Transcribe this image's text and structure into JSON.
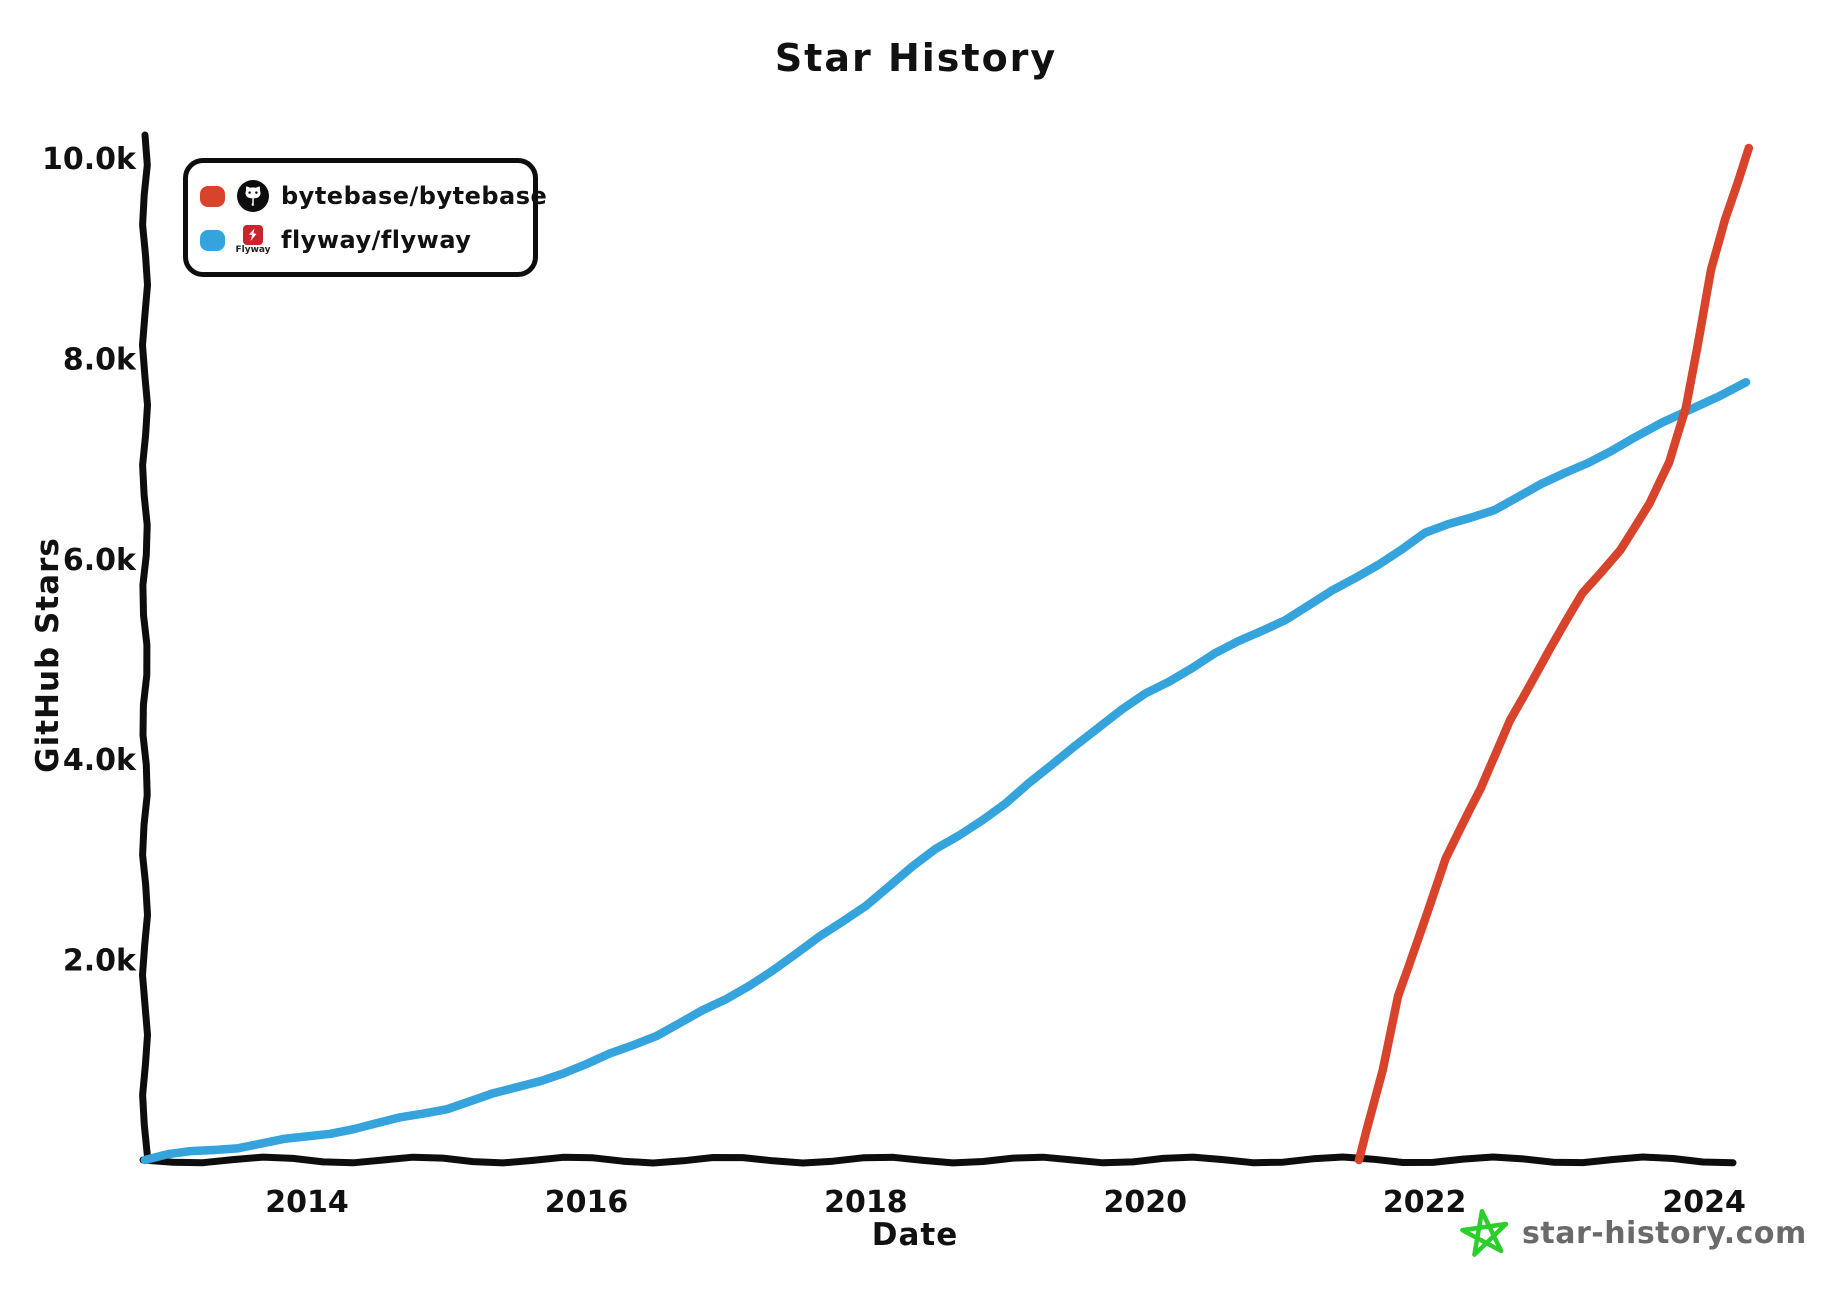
{
  "title": "Star History",
  "legend": {
    "items": [
      {
        "label": "bytebase/bytebase",
        "color": "#d8432b",
        "icon": "github-octocat-icon"
      },
      {
        "label": "flyway/flyway",
        "color": "#35a3dc",
        "icon": "flyway-logo-icon",
        "icon_text": "Flyway"
      }
    ]
  },
  "watermark": {
    "text": "star-history.com",
    "icon": "star-doodle-icon",
    "icon_color": "#2bce2b",
    "text_color": "#6a6a6a"
  },
  "chart_data": {
    "type": "line",
    "title": "Star History",
    "xlabel": "Date",
    "ylabel": "GitHub Stars",
    "grid": false,
    "legend_position": "top-left",
    "xlim": [
      2012.84,
      2024.3
    ],
    "ylim": [
      0,
      10000
    ],
    "x_ticks": [
      {
        "value": 2014,
        "label": "2014"
      },
      {
        "value": 2016,
        "label": "2016"
      },
      {
        "value": 2018,
        "label": "2018"
      },
      {
        "value": 2020,
        "label": "2020"
      },
      {
        "value": 2022,
        "label": "2022"
      },
      {
        "value": 2024,
        "label": "2024"
      }
    ],
    "y_ticks": [
      {
        "value": 2000,
        "label": "2.0k"
      },
      {
        "value": 4000,
        "label": "4.0k"
      },
      {
        "value": 6000,
        "label": "6.0k"
      },
      {
        "value": 8000,
        "label": "8.0k"
      },
      {
        "value": 10000,
        "label": "10.0k"
      }
    ],
    "series": [
      {
        "name": "flyway/flyway",
        "color": "#35a3dc",
        "points": [
          [
            2012.84,
            0
          ],
          [
            2013.0,
            50
          ],
          [
            2013.5,
            130
          ],
          [
            2014.0,
            230
          ],
          [
            2014.5,
            360
          ],
          [
            2015.0,
            520
          ],
          [
            2015.5,
            720
          ],
          [
            2016.0,
            950
          ],
          [
            2016.5,
            1250
          ],
          [
            2017.0,
            1600
          ],
          [
            2017.5,
            2050
          ],
          [
            2018.0,
            2550
          ],
          [
            2018.5,
            3100
          ],
          [
            2019.0,
            3550
          ],
          [
            2019.5,
            4150
          ],
          [
            2020.0,
            4650
          ],
          [
            2020.5,
            5050
          ],
          [
            2021.0,
            5400
          ],
          [
            2021.5,
            5800
          ],
          [
            2022.0,
            6250
          ],
          [
            2022.5,
            6500
          ],
          [
            2023.0,
            6850
          ],
          [
            2023.5,
            7200
          ],
          [
            2023.9,
            7500
          ],
          [
            2024.3,
            7750
          ]
        ]
      },
      {
        "name": "bytebase/bytebase",
        "color": "#d8432b",
        "points": [
          [
            2021.53,
            0
          ],
          [
            2021.7,
            900
          ],
          [
            2021.81,
            1650
          ],
          [
            2022.0,
            2400
          ],
          [
            2022.15,
            3000
          ],
          [
            2022.4,
            3700
          ],
          [
            2022.61,
            4400
          ],
          [
            2022.9,
            5100
          ],
          [
            2023.13,
            5650
          ],
          [
            2023.4,
            6100
          ],
          [
            2023.61,
            6550
          ],
          [
            2023.75,
            6950
          ],
          [
            2023.87,
            7500
          ],
          [
            2023.95,
            8100
          ],
          [
            2024.05,
            8900
          ],
          [
            2024.15,
            9400
          ],
          [
            2024.25,
            9800
          ],
          [
            2024.32,
            10100
          ]
        ]
      }
    ]
  }
}
